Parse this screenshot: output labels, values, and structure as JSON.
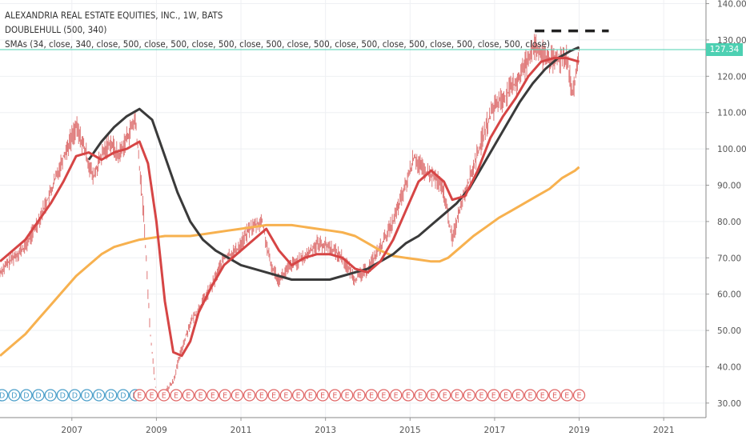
{
  "legend": {
    "symbol_line": "ALEXANDRIA REAL ESTATE EQUITIES, INC., 1W, BATS",
    "indicator_1": "DOUBLEHULL (500, 340)",
    "indicator_2": "SMAs (34, close, 340, close, 500, close, 500, close, 500, close, 500, close, 500, close, 500, close, 500, close, 500, close, 500, close)"
  },
  "last_price": "127.34",
  "colors": {
    "price_bars": "#d44a4a",
    "sma34": "#d64545",
    "sma340": "#3a3a3a",
    "sma500": "#f7b14f",
    "last_price_line": "#4dd0b2",
    "dividend_marker": "#4a9ec9",
    "earnings_marker": "#e06666"
  },
  "chart_data": {
    "type": "line",
    "title": "ALEXANDRIA REAL ESTATE EQUITIES, INC., 1W, BATS",
    "x_tick_labels": [
      "2007",
      "2009",
      "2011",
      "2013",
      "2015",
      "2017",
      "2019",
      "2021"
    ],
    "y_tick_labels": [
      "30.00",
      "40.00",
      "50.00",
      "60.00",
      "70.00",
      "80.00",
      "90.00",
      "100.00",
      "110.00",
      "120.00",
      "130.00",
      "140.00"
    ],
    "xlim": [
      2005.3,
      2022.0
    ],
    "ylim": [
      26,
      141
    ],
    "grid": true,
    "series": [
      {
        "role": "price",
        "points": [
          [
            2005.3,
            66
          ],
          [
            2005.6,
            70
          ],
          [
            2005.9,
            73
          ],
          [
            2006.2,
            80
          ],
          [
            2006.5,
            88
          ],
          [
            2006.8,
            98
          ],
          [
            2007.1,
            106
          ],
          [
            2007.3,
            100
          ],
          [
            2007.5,
            92
          ],
          [
            2007.7,
            98
          ],
          [
            2007.9,
            102
          ],
          [
            2008.1,
            98
          ],
          [
            2008.3,
            103
          ],
          [
            2008.5,
            108
          ],
          [
            2008.7,
            82
          ],
          [
            2008.85,
            50
          ],
          [
            2009.0,
            32
          ],
          [
            2009.2,
            33
          ],
          [
            2009.4,
            36
          ],
          [
            2009.6,
            45
          ],
          [
            2009.8,
            52
          ],
          [
            2010.0,
            56
          ],
          [
            2010.3,
            62
          ],
          [
            2010.6,
            70
          ],
          [
            2010.9,
            72
          ],
          [
            2011.2,
            78
          ],
          [
            2011.5,
            80
          ],
          [
            2011.7,
            68
          ],
          [
            2011.9,
            64
          ],
          [
            2012.2,
            68
          ],
          [
            2012.5,
            70
          ],
          [
            2012.8,
            74
          ],
          [
            2013.1,
            73
          ],
          [
            2013.4,
            70
          ],
          [
            2013.7,
            64
          ],
          [
            2014.0,
            67
          ],
          [
            2014.3,
            73
          ],
          [
            2014.6,
            80
          ],
          [
            2014.9,
            90
          ],
          [
            2015.1,
            98
          ],
          [
            2015.3,
            94
          ],
          [
            2015.6,
            92
          ],
          [
            2015.8,
            88
          ],
          [
            2016.0,
            75
          ],
          [
            2016.2,
            85
          ],
          [
            2016.5,
            95
          ],
          [
            2016.8,
            106
          ],
          [
            2017.0,
            112
          ],
          [
            2017.3,
            115
          ],
          [
            2017.6,
            120
          ],
          [
            2017.9,
            128
          ],
          [
            2018.1,
            126
          ],
          [
            2018.4,
            124
          ],
          [
            2018.7,
            126
          ],
          [
            2018.85,
            114
          ],
          [
            2019.0,
            127
          ]
        ]
      },
      {
        "role": "sma34",
        "points": [
          [
            2005.3,
            69
          ],
          [
            2005.6,
            72
          ],
          [
            2005.9,
            75
          ],
          [
            2006.2,
            80
          ],
          [
            2006.5,
            85
          ],
          [
            2006.8,
            91
          ],
          [
            2007.1,
            98
          ],
          [
            2007.4,
            99
          ],
          [
            2007.7,
            97
          ],
          [
            2008.0,
            99
          ],
          [
            2008.3,
            100
          ],
          [
            2008.6,
            102
          ],
          [
            2008.8,
            96
          ],
          [
            2009.0,
            80
          ],
          [
            2009.2,
            58
          ],
          [
            2009.4,
            44
          ],
          [
            2009.6,
            43
          ],
          [
            2009.8,
            47
          ],
          [
            2010.0,
            55
          ],
          [
            2010.3,
            62
          ],
          [
            2010.6,
            68
          ],
          [
            2010.9,
            71
          ],
          [
            2011.2,
            74
          ],
          [
            2011.6,
            78
          ],
          [
            2011.9,
            72
          ],
          [
            2012.2,
            68
          ],
          [
            2012.5,
            70
          ],
          [
            2012.8,
            71
          ],
          [
            2013.1,
            71
          ],
          [
            2013.4,
            70
          ],
          [
            2013.7,
            67
          ],
          [
            2014.0,
            66
          ],
          [
            2014.3,
            69
          ],
          [
            2014.6,
            75
          ],
          [
            2014.9,
            83
          ],
          [
            2015.2,
            91
          ],
          [
            2015.5,
            94
          ],
          [
            2015.8,
            91
          ],
          [
            2016.0,
            86
          ],
          [
            2016.3,
            87
          ],
          [
            2016.6,
            94
          ],
          [
            2016.9,
            103
          ],
          [
            2017.2,
            109
          ],
          [
            2017.5,
            114
          ],
          [
            2017.8,
            120
          ],
          [
            2018.1,
            124
          ],
          [
            2018.4,
            125
          ],
          [
            2018.7,
            125
          ],
          [
            2019.0,
            124
          ]
        ]
      },
      {
        "role": "sma340",
        "points": [
          [
            2007.4,
            97
          ],
          [
            2007.7,
            102
          ],
          [
            2008.0,
            106
          ],
          [
            2008.3,
            109
          ],
          [
            2008.6,
            111
          ],
          [
            2008.9,
            108
          ],
          [
            2009.2,
            98
          ],
          [
            2009.5,
            88
          ],
          [
            2009.8,
            80
          ],
          [
            2010.1,
            75
          ],
          [
            2010.4,
            72
          ],
          [
            2010.7,
            70
          ],
          [
            2011.0,
            68
          ],
          [
            2011.3,
            67
          ],
          [
            2011.6,
            66
          ],
          [
            2011.9,
            65
          ],
          [
            2012.2,
            64
          ],
          [
            2012.5,
            64
          ],
          [
            2012.8,
            64
          ],
          [
            2013.1,
            64
          ],
          [
            2013.4,
            65
          ],
          [
            2013.7,
            66
          ],
          [
            2014.0,
            67
          ],
          [
            2014.3,
            69
          ],
          [
            2014.6,
            71
          ],
          [
            2014.9,
            74
          ],
          [
            2015.2,
            76
          ],
          [
            2015.5,
            79
          ],
          [
            2015.8,
            82
          ],
          [
            2016.1,
            85
          ],
          [
            2016.4,
            89
          ],
          [
            2016.7,
            95
          ],
          [
            2017.0,
            101
          ],
          [
            2017.3,
            107
          ],
          [
            2017.6,
            113
          ],
          [
            2017.9,
            118
          ],
          [
            2018.2,
            122
          ],
          [
            2018.5,
            125
          ],
          [
            2018.8,
            127
          ],
          [
            2019.0,
            128
          ]
        ]
      },
      {
        "role": "sma500",
        "points": [
          [
            2005.3,
            43
          ],
          [
            2005.6,
            46
          ],
          [
            2005.9,
            49
          ],
          [
            2006.2,
            53
          ],
          [
            2006.5,
            57
          ],
          [
            2006.8,
            61
          ],
          [
            2007.1,
            65
          ],
          [
            2007.4,
            68
          ],
          [
            2007.7,
            71
          ],
          [
            2008.0,
            73
          ],
          [
            2008.3,
            74
          ],
          [
            2008.6,
            75
          ],
          [
            2008.9,
            75.5
          ],
          [
            2009.2,
            76
          ],
          [
            2009.5,
            76
          ],
          [
            2009.8,
            76
          ],
          [
            2010.1,
            76.5
          ],
          [
            2010.4,
            77
          ],
          [
            2010.7,
            77.5
          ],
          [
            2011.0,
            78
          ],
          [
            2011.3,
            78.5
          ],
          [
            2011.6,
            79
          ],
          [
            2011.9,
            79
          ],
          [
            2012.2,
            79
          ],
          [
            2012.5,
            78.5
          ],
          [
            2012.8,
            78
          ],
          [
            2013.1,
            77.5
          ],
          [
            2013.4,
            77
          ],
          [
            2013.7,
            76
          ],
          [
            2014.0,
            74
          ],
          [
            2014.3,
            72
          ],
          [
            2014.6,
            70.5
          ],
          [
            2014.9,
            70
          ],
          [
            2015.2,
            69.5
          ],
          [
            2015.5,
            69
          ],
          [
            2015.7,
            69
          ],
          [
            2015.9,
            70
          ],
          [
            2016.2,
            73
          ],
          [
            2016.5,
            76
          ],
          [
            2016.8,
            78.5
          ],
          [
            2017.1,
            81
          ],
          [
            2017.4,
            83
          ],
          [
            2017.7,
            85
          ],
          [
            2018.0,
            87
          ],
          [
            2018.3,
            89
          ],
          [
            2018.6,
            92
          ],
          [
            2018.9,
            94
          ],
          [
            2019.0,
            95
          ]
        ]
      },
      {
        "role": "dashed_level",
        "points": [
          [
            2017.95,
            132.5
          ],
          [
            2019.7,
            132.5
          ]
        ]
      }
    ],
    "event_markers": {
      "dividends": {
        "label": "D",
        "count": 12,
        "from": 2005.35,
        "to": 2008.5
      },
      "earnings": {
        "label": "E",
        "count": 37,
        "from": 2008.6,
        "to": 2019.0
      }
    }
  }
}
